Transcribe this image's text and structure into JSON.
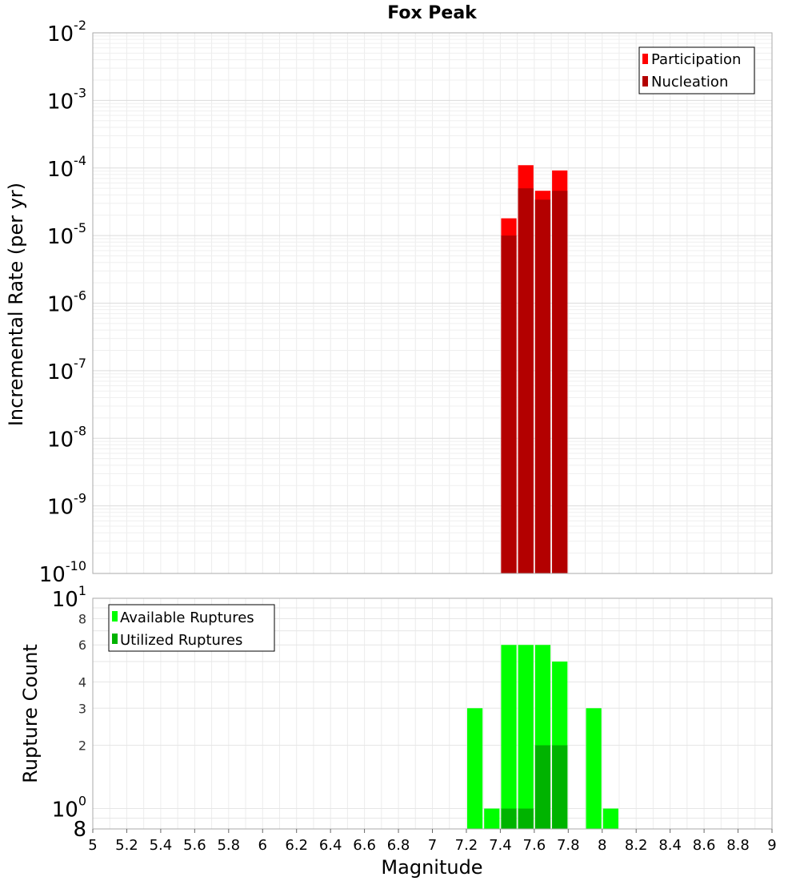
{
  "chart_data": [
    {
      "type": "bar",
      "title": "Fox Peak",
      "ylabel": "Incremental Rate (per yr)",
      "xlabel": "",
      "x_range": [
        5,
        9
      ],
      "bin_width": 0.1,
      "y_scale": "log",
      "ylim": [
        1e-10,
        0.01
      ],
      "y_tick_labels": [
        {
          "base": "10",
          "exp": "-2",
          "value": 0.01
        },
        {
          "base": "10",
          "exp": "-3",
          "value": 0.001
        },
        {
          "base": "10",
          "exp": "-4",
          "value": 0.0001
        },
        {
          "base": "10",
          "exp": "-5",
          "value": 1e-05
        },
        {
          "base": "10",
          "exp": "-6",
          "value": 1e-06
        },
        {
          "base": "10",
          "exp": "-7",
          "value": 1e-07
        },
        {
          "base": "10",
          "exp": "-8",
          "value": 1e-08
        },
        {
          "base": "10",
          "exp": "-9",
          "value": 1e-09
        },
        {
          "base": "10",
          "exp": "-10",
          "value": 1e-10
        }
      ],
      "legend_position": "top-right",
      "grid": true,
      "series": [
        {
          "name": "Participation",
          "color": "#ff0000",
          "x": [
            7.45,
            7.55,
            7.65,
            7.75
          ],
          "values": [
            1.8e-05,
            0.00011,
            4.6e-05,
            9.2e-05
          ]
        },
        {
          "name": "Nucleation",
          "color": "#b30000",
          "x": [
            7.45,
            7.55,
            7.65,
            7.75
          ],
          "values": [
            1e-05,
            5e-05,
            3.4e-05,
            4.6e-05
          ]
        }
      ]
    },
    {
      "type": "bar",
      "title": "",
      "ylabel": "Rupture Count",
      "xlabel": "Magnitude",
      "x_range": [
        5,
        9
      ],
      "bin_width": 0.1,
      "y_scale": "log",
      "ylim": [
        0.8,
        10
      ],
      "y_tick_labels": [
        {
          "base": "10",
          "exp": "1",
          "value": 10,
          "major": true
        },
        {
          "base": "8",
          "exp": "",
          "value": 8,
          "major": false
        },
        {
          "base": "6",
          "exp": "",
          "value": 6,
          "major": false
        },
        {
          "base": "4",
          "exp": "",
          "value": 4,
          "major": false
        },
        {
          "base": "3",
          "exp": "",
          "value": 3,
          "major": false
        },
        {
          "base": "2",
          "exp": "",
          "value": 2,
          "major": false
        },
        {
          "base": "10",
          "exp": "0",
          "value": 1,
          "major": true
        },
        {
          "base": "8",
          "exp": "",
          "value": 0.8,
          "major": true
        }
      ],
      "x_tick_labels": [
        "5",
        "5.2",
        "5.4",
        "5.6",
        "5.8",
        "6",
        "6.2",
        "6.4",
        "6.6",
        "6.8",
        "7",
        "7.2",
        "7.4",
        "7.6",
        "7.8",
        "8",
        "8.2",
        "8.4",
        "8.6",
        "8.8",
        "9"
      ],
      "x_ticks": [
        5,
        5.2,
        5.4,
        5.6,
        5.8,
        6,
        6.2,
        6.4,
        6.6,
        6.8,
        7,
        7.2,
        7.4,
        7.6,
        7.8,
        8,
        8.2,
        8.4,
        8.6,
        8.8,
        9
      ],
      "legend_position": "top-left",
      "grid": true,
      "series": [
        {
          "name": "Available Ruptures",
          "color": "#00ff00",
          "x": [
            7.25,
            7.35,
            7.45,
            7.55,
            7.65,
            7.75,
            7.95,
            8.05
          ],
          "values": [
            3,
            1,
            6,
            6,
            6,
            5,
            3,
            1
          ]
        },
        {
          "name": "Utilized Ruptures",
          "color": "#00b300",
          "x": [
            7.45,
            7.55,
            7.65,
            7.75
          ],
          "values": [
            1,
            1,
            2,
            2
          ]
        }
      ]
    }
  ]
}
